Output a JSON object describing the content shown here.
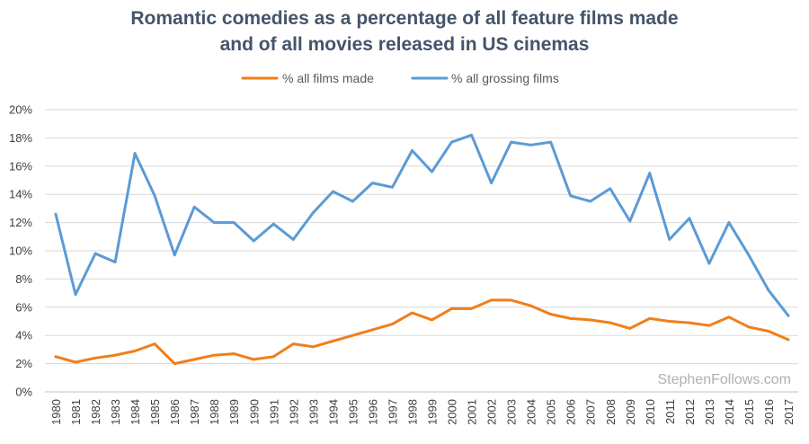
{
  "chart_data": {
    "type": "line",
    "title_lines": [
      "Romantic comedies as a percentage of all feature films made",
      "and of all movies released in US cinemas"
    ],
    "categories": [
      "1980",
      "1981",
      "1982",
      "1983",
      "1984",
      "1985",
      "1986",
      "1987",
      "1988",
      "1989",
      "1990",
      "1991",
      "1992",
      "1993",
      "1994",
      "1995",
      "1996",
      "1997",
      "1998",
      "1999",
      "2000",
      "2001",
      "2002",
      "2003",
      "2004",
      "2005",
      "2006",
      "2007",
      "2008",
      "2009",
      "2010",
      "2011",
      "2012",
      "2013",
      "2014",
      "2015",
      "2016",
      "2017"
    ],
    "series": [
      {
        "name": "% all films made",
        "color": "#f07f1b",
        "values": [
          2.5,
          2.1,
          2.4,
          2.6,
          2.9,
          3.4,
          2.0,
          2.3,
          2.6,
          2.7,
          2.3,
          2.5,
          3.4,
          3.2,
          3.6,
          4.0,
          4.4,
          4.8,
          5.6,
          5.1,
          5.9,
          5.9,
          6.5,
          6.5,
          6.1,
          5.5,
          5.2,
          5.1,
          4.9,
          4.5,
          5.2,
          5.0,
          4.9,
          4.7,
          5.3,
          4.6,
          4.3,
          3.7
        ]
      },
      {
        "name": "% all grossing films",
        "color": "#5b9bd5",
        "values": [
          12.6,
          6.9,
          9.8,
          9.2,
          16.9,
          13.9,
          9.7,
          13.1,
          12.0,
          12.0,
          10.7,
          11.9,
          10.8,
          12.7,
          14.2,
          13.5,
          14.8,
          14.5,
          17.1,
          15.6,
          17.7,
          18.2,
          14.8,
          17.7,
          17.5,
          17.7,
          13.9,
          13.5,
          14.4,
          12.1,
          15.5,
          10.8,
          12.3,
          9.1,
          12.0,
          9.7,
          7.2,
          5.4
        ]
      }
    ],
    "y_ticks": [
      "0%",
      "2%",
      "4%",
      "6%",
      "8%",
      "10%",
      "12%",
      "14%",
      "16%",
      "18%",
      "20%"
    ],
    "ylim": [
      0,
      20
    ],
    "xlabel": "",
    "ylabel": "",
    "grid": true,
    "legend_position": "top-center",
    "watermark": "StephenFollows.com"
  }
}
